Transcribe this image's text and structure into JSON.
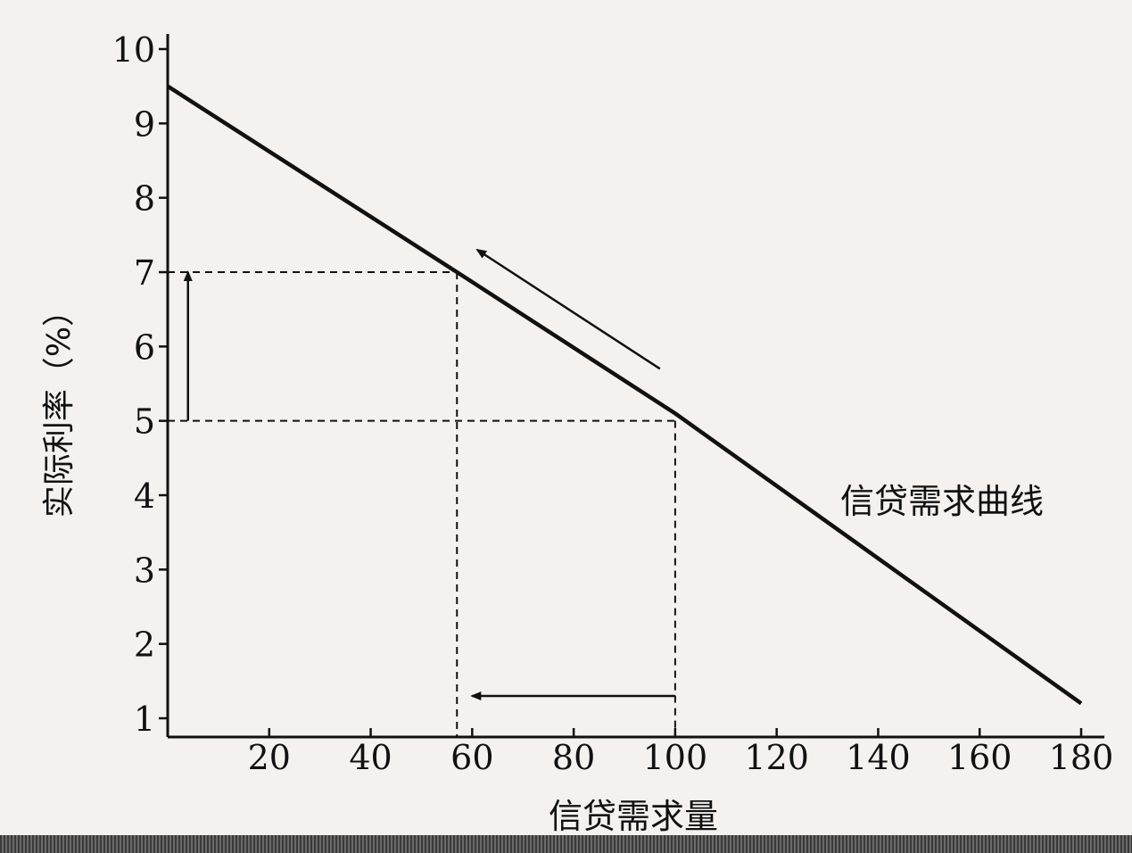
{
  "chart_data": {
    "type": "line",
    "xlabel": "信贷需求量",
    "ylabel": "实际利率（%）",
    "xlim": [
      0,
      180
    ],
    "ylim": [
      0.5,
      10
    ],
    "x_ticks": [
      20,
      40,
      60,
      80,
      100,
      120,
      140,
      160,
      180
    ],
    "y_ticks": [
      1,
      2,
      3,
      4,
      5,
      6,
      7,
      8,
      9,
      10
    ],
    "grid": false,
    "series": [
      {
        "name": "信贷需求曲线",
        "x": [
          0,
          57,
          100,
          180
        ],
        "y": [
          9.5,
          7,
          5.1,
          1.2
        ]
      }
    ],
    "annotations": {
      "reference_lines": [
        {
          "x": 57,
          "y": 7
        },
        {
          "x": 100,
          "y": 5
        }
      ],
      "arrows": [
        {
          "from": [
            100,
            1.3
          ],
          "to": [
            60,
            1.3
          ],
          "meaning": "demand decreases"
        },
        {
          "from": [
            4,
            5
          ],
          "to": [
            4,
            7
          ],
          "meaning": "rate increases"
        },
        {
          "from": [
            97,
            5.7
          ],
          "to": [
            61,
            7.3
          ],
          "meaning": "move along curve"
        }
      ]
    }
  }
}
